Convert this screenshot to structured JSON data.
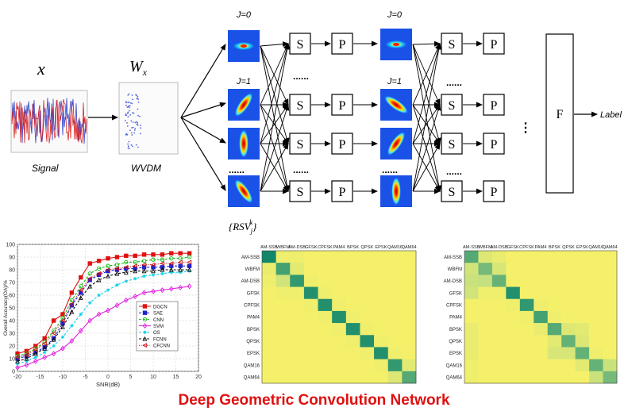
{
  "diagram": {
    "x_symbol": "x",
    "w_symbol": "W",
    "w_subscript": "x",
    "signal_label": "Signal",
    "wvdm_label": "WVDM",
    "j0_label": "J=0",
    "j1_label": "J=1",
    "s_label": "S",
    "p_label": "P",
    "f_label": "F",
    "output_label": "Label",
    "rsv_label": "{RSV",
    "rsv_sub": "j",
    "rsv_sup": "k",
    "rsv_close": "}",
    "dots_h": "......",
    "dots_v": "⋮"
  },
  "caption": "Deep Geometric Convolution Network",
  "colors": {
    "caption": "#e01010",
    "cm_low": "#f5f06a",
    "cm_mid": "#b8dc84",
    "cm_high": "#11876a"
  },
  "chart_data": [
    {
      "type": "line",
      "xlabel": "SNR(dB)",
      "ylabel": "Overall Accuracy(OA)/%",
      "xlim": [
        -20,
        20
      ],
      "ylim": [
        0,
        100
      ],
      "xticks": [
        -20,
        -15,
        -10,
        -5,
        0,
        5,
        10,
        15,
        20
      ],
      "yticks": [
        0,
        10,
        20,
        30,
        40,
        50,
        60,
        70,
        80,
        90,
        100
      ],
      "grid": true,
      "legend_position": "right-middle",
      "x": [
        -20,
        -18,
        -16,
        -14,
        -12,
        -10,
        -8,
        -6,
        -4,
        -2,
        0,
        2,
        4,
        6,
        8,
        10,
        12,
        14,
        16,
        18
      ],
      "series": [
        {
          "name": "DGCN",
          "color": "#e01010",
          "marker": "square",
          "dash": "solid",
          "values": [
            14,
            16,
            20,
            26,
            40,
            45,
            62,
            74,
            85,
            87,
            89,
            90,
            91,
            91,
            92,
            92,
            92,
            93,
            93,
            93
          ]
        },
        {
          "name": "SAE",
          "color": "#2222cc",
          "marker": "square",
          "dash": "dashed",
          "values": [
            10,
            12,
            15,
            19,
            26,
            38,
            52,
            62,
            72,
            76,
            79,
            80,
            81,
            81,
            82,
            82,
            82,
            83,
            83,
            83
          ]
        },
        {
          "name": "CNN",
          "color": "#14b814",
          "marker": "circle",
          "dash": "dashed",
          "values": [
            12,
            14,
            18,
            23,
            32,
            42,
            56,
            67,
            77,
            81,
            83,
            84,
            86,
            86,
            87,
            88,
            88,
            89,
            89,
            90
          ]
        },
        {
          "name": "SVM",
          "color": "#e020e0",
          "marker": "diamond",
          "dash": "solid",
          "values": [
            3,
            5,
            8,
            11,
            14,
            18,
            24,
            32,
            40,
            45,
            48,
            52,
            56,
            59,
            62,
            63,
            64,
            65,
            66,
            67
          ]
        },
        {
          "name": "OS",
          "color": "#10d0e8",
          "marker": "star",
          "dash": "dashed",
          "values": [
            6,
            8,
            11,
            15,
            20,
            27,
            36,
            45,
            54,
            60,
            64,
            68,
            71,
            73,
            75,
            76,
            77,
            78,
            78,
            79
          ]
        },
        {
          "name": "FCNN",
          "color": "#111111",
          "marker": "triangle",
          "dash": "dashed",
          "values": [
            8,
            10,
            14,
            18,
            25,
            35,
            47,
            58,
            67,
            72,
            75,
            77,
            78,
            79,
            79,
            79,
            80,
            80,
            80,
            80
          ]
        },
        {
          "name": "CFCNN",
          "color": "#d01010",
          "marker": "triangle-left",
          "dash": "dotted",
          "values": [
            11,
            13,
            17,
            22,
            30,
            40,
            53,
            64,
            73,
            77,
            80,
            81,
            82,
            83,
            84,
            84,
            85,
            85,
            86,
            86
          ]
        }
      ]
    },
    {
      "type": "heatmap",
      "x_labels": [
        "AM-SSB",
        "WBFM",
        "AM-DSB",
        "GFSK",
        "CPFSK",
        "PAM4",
        "BPSK",
        "QPSK",
        "EPSK",
        "QAM16",
        "QAM64"
      ],
      "y_labels": [
        "AM-SSB",
        "WBFM",
        "AM-DSB",
        "GFSK",
        "CPFSK",
        "PAM4",
        "BPSK",
        "QPSK",
        "EPSK",
        "QAM16",
        "QAM64"
      ],
      "matrix": [
        [
          1.0,
          0.05,
          0.05,
          0,
          0,
          0,
          0,
          0,
          0,
          0,
          0
        ],
        [
          0.1,
          0.85,
          0.15,
          0,
          0,
          0,
          0,
          0,
          0,
          0,
          0
        ],
        [
          0.05,
          0.3,
          0.9,
          0.05,
          0,
          0,
          0,
          0,
          0,
          0,
          0
        ],
        [
          0,
          0.05,
          0.05,
          0.95,
          0.05,
          0,
          0,
          0,
          0,
          0,
          0
        ],
        [
          0,
          0,
          0,
          0.05,
          0.95,
          0.05,
          0,
          0,
          0,
          0,
          0
        ],
        [
          0,
          0,
          0,
          0,
          0.05,
          0.95,
          0.05,
          0,
          0,
          0,
          0
        ],
        [
          0,
          0,
          0,
          0,
          0,
          0.05,
          0.95,
          0.05,
          0,
          0,
          0
        ],
        [
          0,
          0,
          0,
          0,
          0,
          0,
          0.05,
          0.95,
          0.05,
          0,
          0
        ],
        [
          0,
          0,
          0,
          0,
          0,
          0,
          0,
          0.05,
          0.95,
          0.05,
          0
        ],
        [
          0,
          0,
          0,
          0,
          0,
          0,
          0,
          0,
          0.05,
          0.9,
          0.15
        ],
        [
          0,
          0,
          0,
          0,
          0,
          0,
          0,
          0,
          0,
          0.2,
          0.8
        ]
      ]
    },
    {
      "type": "heatmap",
      "x_labels": [
        "AM-SSB",
        "WBFM",
        "AM-DSB",
        "GFSK",
        "CPFSK",
        "PAM4",
        "BPSK",
        "QPSK",
        "EPSK",
        "QAM16",
        "QAM64"
      ],
      "y_labels": [
        "AM-SSB",
        "WBFM",
        "AM-DSB",
        "GFSK",
        "CPFSK",
        "PAM4",
        "BPSK",
        "QPSK",
        "EPSK",
        "QAM16",
        "QAM64"
      ],
      "matrix": [
        [
          0.8,
          0.2,
          0.1,
          0,
          0,
          0,
          0,
          0,
          0,
          0,
          0
        ],
        [
          0.3,
          0.7,
          0.25,
          0,
          0,
          0,
          0,
          0,
          0,
          0,
          0
        ],
        [
          0.35,
          0.4,
          0.75,
          0,
          0,
          0,
          0,
          0,
          0,
          0,
          0
        ],
        [
          0.3,
          0.05,
          0.05,
          0.95,
          0,
          0,
          0,
          0,
          0,
          0,
          0
        ],
        [
          0,
          0,
          0,
          0.05,
          0.9,
          0.05,
          0,
          0,
          0,
          0,
          0
        ],
        [
          0,
          0,
          0,
          0,
          0.05,
          0.85,
          0.05,
          0,
          0,
          0,
          0
        ],
        [
          0.1,
          0,
          0,
          0,
          0,
          0.1,
          0.8,
          0.2,
          0.15,
          0,
          0
        ],
        [
          0.1,
          0,
          0,
          0,
          0,
          0,
          0.15,
          0.75,
          0.2,
          0,
          0
        ],
        [
          0.1,
          0,
          0,
          0,
          0,
          0,
          0.25,
          0.25,
          0.75,
          0.05,
          0
        ],
        [
          0.05,
          0,
          0,
          0,
          0,
          0,
          0,
          0,
          0.15,
          0.75,
          0.35
        ],
        [
          0.05,
          0,
          0,
          0,
          0,
          0,
          0,
          0,
          0,
          0.35,
          0.7
        ]
      ]
    }
  ]
}
